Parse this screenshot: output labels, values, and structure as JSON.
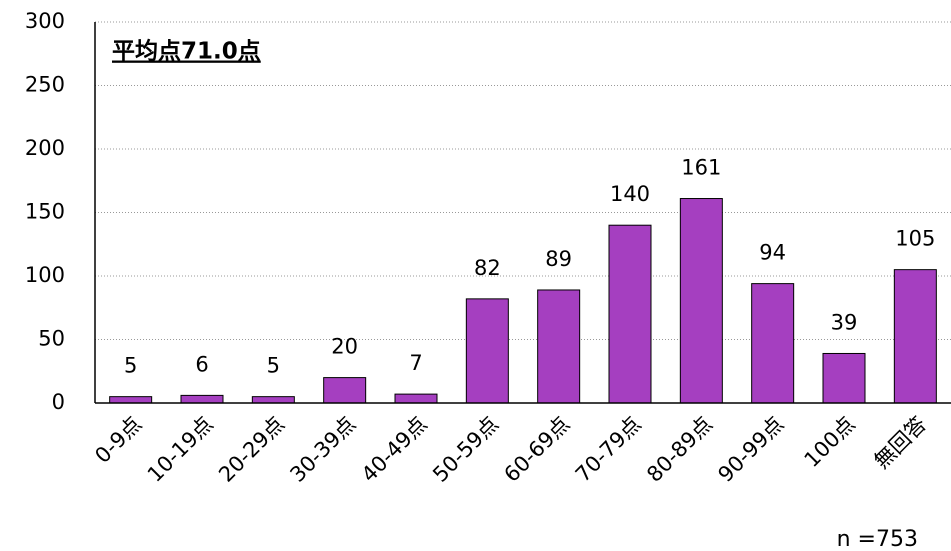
{
  "chart_data": {
    "type": "bar",
    "title": "平均点71.0点",
    "categories": [
      "0-9点",
      "10-19点",
      "20-29点",
      "30-39点",
      "40-49点",
      "50-59点",
      "60-69点",
      "70-79点",
      "80-89点",
      "90-99点",
      "100点",
      "無回答"
    ],
    "values": [
      5,
      6,
      5,
      20,
      7,
      82,
      89,
      140,
      161,
      94,
      39,
      105
    ],
    "color": "#a53fc0",
    "ylim": [
      0,
      300
    ],
    "yticks": [
      0,
      50,
      100,
      150,
      200,
      250,
      300
    ],
    "grid": true,
    "annotations": [
      "n =753"
    ]
  }
}
